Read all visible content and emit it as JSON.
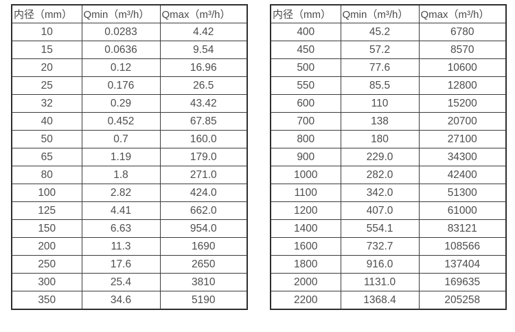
{
  "colors": {
    "background": "#ffffff",
    "border_outer": "#2e2e2e",
    "border_inner": "#3a3a3a",
    "text": "#4d4d4d"
  },
  "tables": [
    {
      "name": "flow-rate-table-small-diameters",
      "headers": [
        "内径（mm）",
        "Qmin（m³/h）",
        "Qmax（m³/h）"
      ],
      "rows": [
        [
          "10",
          "0.0283",
          "4.42"
        ],
        [
          "15",
          "0.0636",
          "9.54"
        ],
        [
          "20",
          "0.12",
          "16.96"
        ],
        [
          "25",
          "0.176",
          "26.5"
        ],
        [
          "32",
          "0.29",
          "43.42"
        ],
        [
          "40",
          "0.452",
          "67.85"
        ],
        [
          "50",
          "0.7",
          "160.0"
        ],
        [
          "65",
          "1.19",
          "179.0"
        ],
        [
          "80",
          "1.8",
          "271.0"
        ],
        [
          "100",
          "2.82",
          "424.0"
        ],
        [
          "125",
          "4.41",
          "662.0"
        ],
        [
          "150",
          "6.63",
          "954.0"
        ],
        [
          "200",
          "11.3",
          "1690"
        ],
        [
          "250",
          "17.6",
          "2650"
        ],
        [
          "300",
          "25.4",
          "3810"
        ],
        [
          "350",
          "34.6",
          "5190"
        ]
      ]
    },
    {
      "name": "flow-rate-table-large-diameters",
      "headers": [
        "内径（mm）",
        "Qmin（m³/h）",
        "Qmax（m³/h）"
      ],
      "rows": [
        [
          "400",
          "45.2",
          "6780"
        ],
        [
          "450",
          "57.2",
          "8570"
        ],
        [
          "500",
          "77.6",
          "10600"
        ],
        [
          "550",
          "85.5",
          "12800"
        ],
        [
          "600",
          "110",
          "15200"
        ],
        [
          "700",
          "138",
          "20700"
        ],
        [
          "800",
          "180",
          "27100"
        ],
        [
          "900",
          "229.0",
          "34300"
        ],
        [
          "1000",
          "282.0",
          "42400"
        ],
        [
          "1100",
          "342.0",
          "51300"
        ],
        [
          "1200",
          "407.0",
          "61000"
        ],
        [
          "1400",
          "554.1",
          "83121"
        ],
        [
          "1600",
          "732.7",
          "108566"
        ],
        [
          "1800",
          "916.0",
          "137404"
        ],
        [
          "2000",
          "1131.0",
          "169635"
        ],
        [
          "2200",
          "1368.4",
          "205258"
        ]
      ]
    }
  ]
}
